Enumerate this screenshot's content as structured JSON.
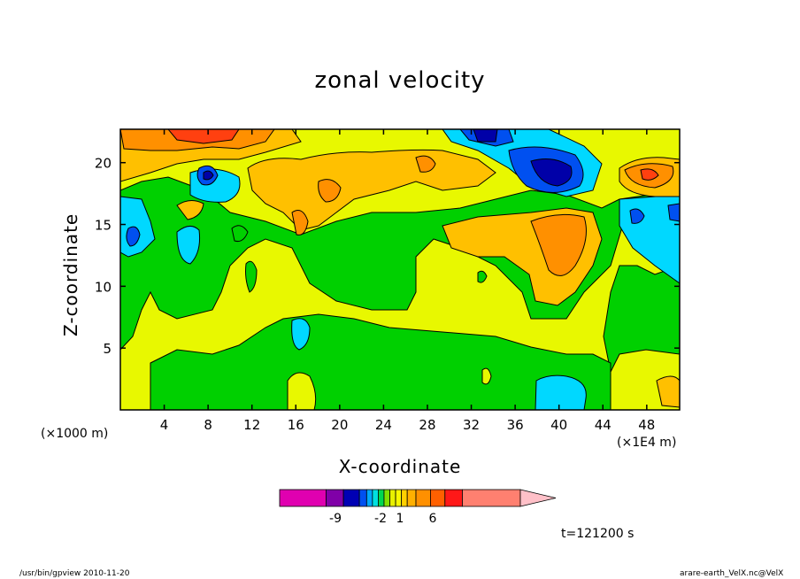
{
  "chart_data": {
    "type": "heatmap",
    "title": "zonal velocity",
    "xlabel": "X-coordinate",
    "ylabel": "Z-coordinate",
    "x_unit_label": "(×1E4 m)",
    "y_unit_label": "(×1000 m)",
    "xlim": [
      0,
      51
    ],
    "ylim": [
      0,
      22.7
    ],
    "x_ticks": [
      4,
      8,
      12,
      16,
      20,
      24,
      28,
      32,
      36,
      40,
      44,
      48
    ],
    "y_ticks": [
      5,
      10,
      15,
      20
    ],
    "time_label": "t=121200 s",
    "colorbar": {
      "labels": [
        "-9",
        "-2",
        "1",
        "6"
      ],
      "levels": [
        -14,
        -10,
        -8,
        -6,
        -5,
        -4,
        -3,
        -2,
        -1,
        0,
        1,
        2,
        3,
        4,
        6,
        8,
        10
      ],
      "colors": [
        "#e000b0",
        "#8000a8",
        "#0000b4",
        "#0050f0",
        "#00a8ff",
        "#00e0e0",
        "#00d850",
        "#80e000",
        "#e8f000",
        "#f8f800",
        "#ffd000",
        "#ffb000",
        "#ff9000",
        "#ff6000",
        "#ff1818",
        "#ff8070",
        "#ffc0c8"
      ]
    },
    "grid": false,
    "legend": "colorbar below plot"
  },
  "footer": {
    "left": "/usr/bin/gpview   2010-11-20",
    "right": "arare-earth_VelX.nc@VelX"
  }
}
